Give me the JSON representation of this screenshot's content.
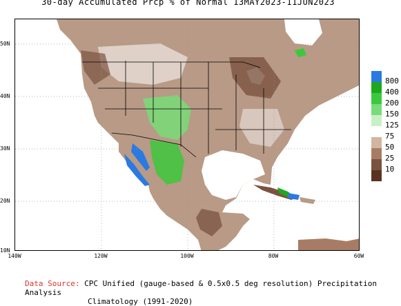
{
  "title": "30-day Accumulated Prcp % of Normal 13MAY2023-11JUN2023",
  "lat_labels": [
    "50N",
    "40N",
    "30N",
    "20N",
    "10N"
  ],
  "lon_labels": [
    "140W",
    "120W",
    "100W",
    "80W",
    "60W"
  ],
  "legend": [
    {
      "label": "800",
      "color": "#2a7ae2"
    },
    {
      "label": "400",
      "color": "#1ea81e"
    },
    {
      "label": "200",
      "color": "#3cc83c"
    },
    {
      "label": "150",
      "color": "#78dc78"
    },
    {
      "label": "125",
      "color": "#c8f0c8"
    },
    {
      "label": "75",
      "color": "#ffffff"
    },
    {
      "label": "50",
      "color": "#d2b4a0"
    },
    {
      "label": "25",
      "color": "#a87c64"
    },
    {
      "label": "10",
      "color": "#7a5240"
    },
    {
      "label": "",
      "color": "#5a3222"
    }
  ],
  "source_label": "Data Source:",
  "source_text": "CPC Unified (gauge-based & 0.5x0.5 deg resolution) Precipitation Analysis",
  "climatology": "Climatology (1991-2020)"
}
